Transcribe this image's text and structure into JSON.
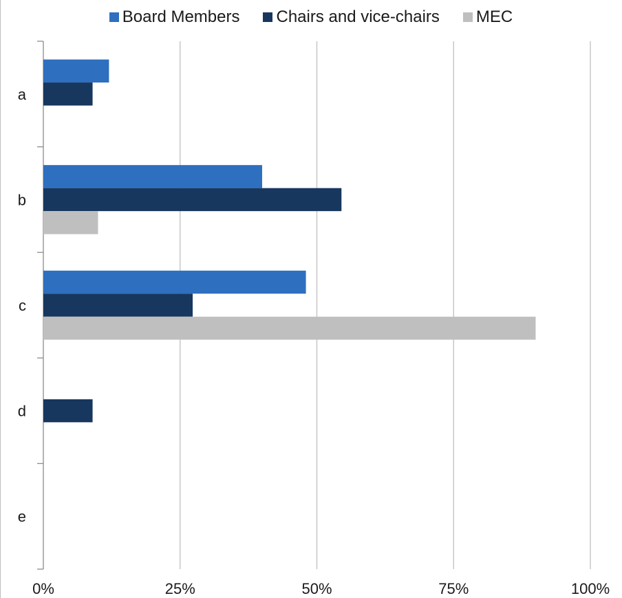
{
  "chart_data": {
    "type": "bar",
    "orientation": "horizontal",
    "categories": [
      "a",
      "b",
      "c",
      "d",
      "e"
    ],
    "series": [
      {
        "name": "Board Members",
        "color": "#2e6fbf",
        "values": [
          12,
          40,
          48,
          0,
          0
        ]
      },
      {
        "name": "Chairs and vice-chairs",
        "color": "#17375e",
        "values": [
          9,
          54.5,
          27.3,
          9,
          0
        ]
      },
      {
        "name": "MEC",
        "color": "#bfbfbf",
        "values": [
          0,
          10,
          90,
          0,
          0
        ]
      }
    ],
    "x_ticks": [
      "0%",
      "25%",
      "50%",
      "75%",
      "100%"
    ],
    "xlim": [
      0,
      100
    ],
    "grid": "vertical",
    "legend": "top-center"
  }
}
